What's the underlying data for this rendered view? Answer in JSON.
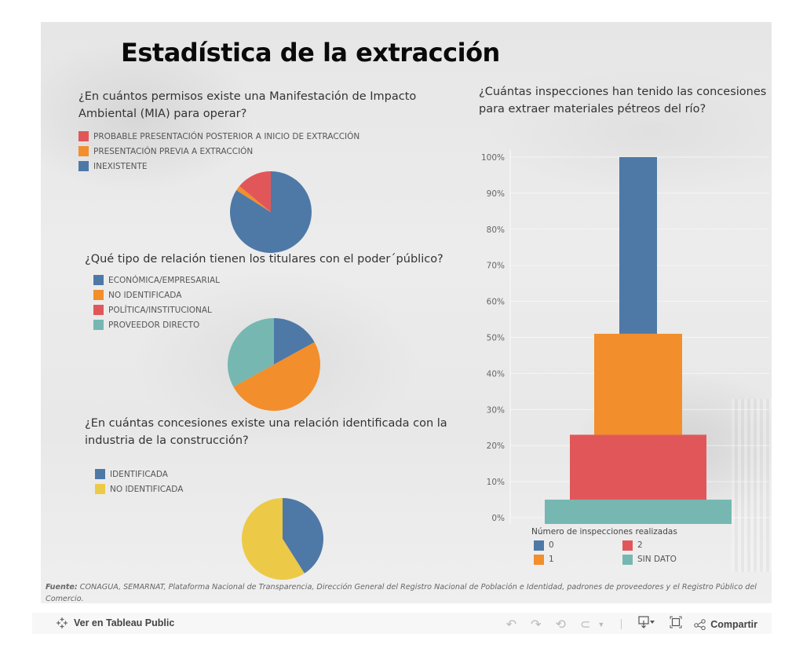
{
  "dashboard": {
    "title": "Estadística de la extracción",
    "source_label": "Fuente:",
    "source_text": " CONAGUA, SEMARNAT, Plataforma Nacional de Transparencia, Dirección General del Registro Nacional de Población e Identidad, padrones de proveedores y el Registro Público del Comercio."
  },
  "colors": {
    "blue": "#4e79a7",
    "orange": "#f28e2b",
    "red": "#e15759",
    "teal": "#76b7b2",
    "yellow": "#edc948"
  },
  "chart_data": [
    {
      "type": "pie",
      "title": "¿En cuántos permisos existe una Manifestación de Impacto Ambiental (MIA) para operar?",
      "legend": [
        "PROBABLE PRESENTACIÓN POSTERIOR A INICIO DE EXTRACCIÓN",
        "PRESENTACIÓN PREVIA A EXTRACCIÓN",
        "INEXISTENTE"
      ],
      "legend_colors": [
        "#e15759",
        "#f28e2b",
        "#4e79a7"
      ],
      "slices": [
        {
          "label": "INEXISTENTE",
          "value": 84,
          "color": "#4e79a7"
        },
        {
          "label": "PRESENTACIÓN PREVIA A EXTRACCIÓN",
          "value": 2,
          "color": "#f28e2b"
        },
        {
          "label": "PROBABLE PRESENTACIÓN POSTERIOR A INICIO DE EXTRACCIÓN",
          "value": 14,
          "color": "#e15759"
        }
      ]
    },
    {
      "type": "pie",
      "title": "¿Qué tipo de relación tienen los titulares con el poder´público?",
      "legend": [
        "ECONÓMICA/EMPRESARIAL",
        "NO IDENTIFICADA",
        "POLÍTICA/INSTITUCIONAL",
        "PROVEEDOR DIRECTO"
      ],
      "legend_colors": [
        "#4e79a7",
        "#f28e2b",
        "#e15759",
        "#76b7b2"
      ],
      "slices": [
        {
          "label": "ECONÓMICA/EMPRESARIAL",
          "value": 17,
          "color": "#4e79a7"
        },
        {
          "label": "NO IDENTIFICADA",
          "value": 50,
          "color": "#f28e2b"
        },
        {
          "label": "POLÍTICA/INSTITUCIONAL",
          "value": 0,
          "color": "#e15759"
        },
        {
          "label": "PROVEEDOR DIRECTO",
          "value": 33,
          "color": "#76b7b2"
        }
      ]
    },
    {
      "type": "pie",
      "title": "¿En cuántas concesiones existe una relación identificada con la industria de la construcción?",
      "legend": [
        "IDENTIFICADA",
        "NO IDENTIFICADA"
      ],
      "legend_colors": [
        "#4e79a7",
        "#edc948"
      ],
      "slices": [
        {
          "label": "IDENTIFICADA",
          "value": 41,
          "color": "#4e79a7"
        },
        {
          "label": "NO IDENTIFICADA",
          "value": 59,
          "color": "#edc948"
        }
      ]
    },
    {
      "type": "bar",
      "stacked": true,
      "title": "¿Cuántas inspecciones han tenido las concesiones para extraer materiales pétreos del río?",
      "ylabel": "",
      "ylim": [
        0,
        100
      ],
      "yticks": [
        "0%",
        "10%",
        "20%",
        "30%",
        "40%",
        "50%",
        "60%",
        "70%",
        "80%",
        "90%",
        "100%"
      ],
      "legend_title": "Número de inspecciones realizadas",
      "legend": [
        "0",
        "2",
        "1",
        "SIN DATO"
      ],
      "legend_colors": [
        "#4e79a7",
        "#e15759",
        "#f28e2b",
        "#76b7b2"
      ],
      "series": [
        {
          "name": "SIN DATO",
          "value": 5,
          "color": "#76b7b2"
        },
        {
          "name": "2",
          "value": 18,
          "color": "#e15759"
        },
        {
          "name": "1",
          "value": 28,
          "color": "#f28e2b"
        },
        {
          "name": "0",
          "value": 49,
          "color": "#4e79a7"
        }
      ]
    }
  ],
  "toolbar": {
    "view_label": "Ver en Tableau Public",
    "share_label": "Compartir",
    "icons": [
      "tableau-logo-icon",
      "undo-icon",
      "redo-icon",
      "revert-icon",
      "refresh-icon",
      "dropdown-icon",
      "download-icon",
      "fullscreen-icon",
      "share-icon"
    ]
  }
}
